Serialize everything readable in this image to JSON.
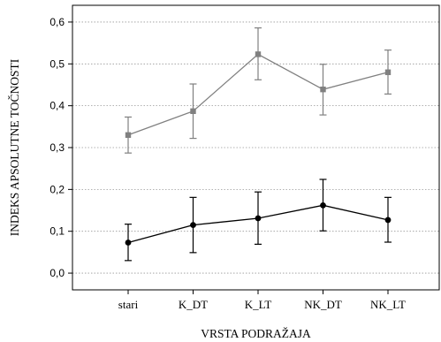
{
  "chart_data": {
    "type": "line",
    "title": "",
    "xlabel": "VRSTA PODRAŽAJA",
    "ylabel": "INDEKS APSOLUTNE TOČNOSTI",
    "categories": [
      "stari",
      "K_DT",
      "K_LT",
      "NK_DT",
      "NK_LT"
    ],
    "ylim": [
      -0.04,
      0.64
    ],
    "yticks": [
      0.0,
      0.1,
      0.2,
      0.3,
      0.4,
      0.5,
      0.6
    ],
    "ytick_labels": [
      "0,0",
      "0,1",
      "0,2",
      "0,3",
      "0,4",
      "0,5",
      "0,6"
    ],
    "grid": "horizontal dotted",
    "series": [
      {
        "color": "#808080",
        "marker": "square",
        "values": [
          0.33,
          0.387,
          0.523,
          0.439,
          0.48
        ],
        "lower": [
          0.287,
          0.322,
          0.462,
          0.378,
          0.428
        ],
        "upper": [
          0.373,
          0.452,
          0.586,
          0.499,
          0.533
        ]
      },
      {
        "color": "#000000",
        "marker": "circle",
        "values": [
          0.073,
          0.115,
          0.131,
          0.162,
          0.127
        ],
        "lower": [
          0.03,
          0.049,
          0.069,
          0.101,
          0.074
        ],
        "upper": [
          0.117,
          0.181,
          0.194,
          0.224,
          0.181
        ]
      }
    ]
  }
}
